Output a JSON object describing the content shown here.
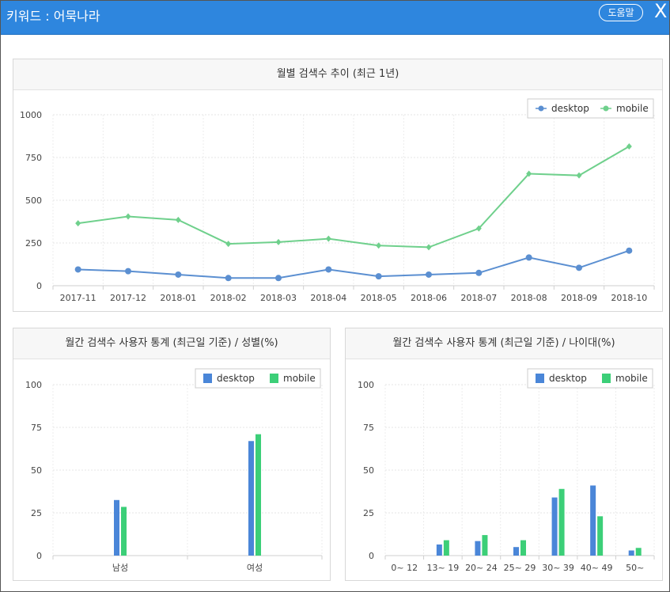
{
  "window": {
    "title": "키워드 : 어묵나라",
    "help_label": "도움말",
    "close_label": "X"
  },
  "chart_data": [
    {
      "type": "line",
      "title": "월별 검색수 추이 (최근 1년)",
      "categories": [
        "2017-11",
        "2017-12",
        "2018-01",
        "2018-02",
        "2018-03",
        "2018-04",
        "2018-05",
        "2018-06",
        "2018-07",
        "2018-08",
        "2018-09",
        "2018-10"
      ],
      "series": [
        {
          "name": "desktop",
          "color": "#5b8fd1",
          "values": [
            95,
            85,
            65,
            45,
            45,
            95,
            55,
            65,
            75,
            165,
            105,
            205
          ]
        },
        {
          "name": "mobile",
          "color": "#6fd08c",
          "values": [
            365,
            405,
            385,
            245,
            255,
            275,
            235,
            225,
            335,
            655,
            645,
            815
          ]
        }
      ],
      "yticks": [
        0,
        250,
        500,
        750,
        1000
      ],
      "ylim": [
        0,
        1000
      ],
      "legend": "top-right"
    },
    {
      "type": "bar",
      "title": "월간 검색수 사용자 통계 (최근일 기준) / 성별(%)",
      "categories": [
        "남성",
        "여성"
      ],
      "series": [
        {
          "name": "desktop",
          "color": "#4a86d8",
          "values": [
            32.5,
            67
          ]
        },
        {
          "name": "mobile",
          "color": "#3ccf78",
          "values": [
            28.5,
            71
          ]
        }
      ],
      "yticks": [
        0,
        25,
        50,
        75,
        100
      ],
      "ylim": [
        0,
        100
      ],
      "legend": "top-right"
    },
    {
      "type": "bar",
      "title": "월간 검색수 사용자 통계 (최근일 기준) / 나이대(%)",
      "categories": [
        "0~ 12",
        "13~ 19",
        "20~ 24",
        "25~ 29",
        "30~ 39",
        "40~ 49",
        "50~"
      ],
      "series": [
        {
          "name": "desktop",
          "color": "#4a86d8",
          "values": [
            0,
            6.5,
            8.5,
            5,
            34,
            41,
            3
          ]
        },
        {
          "name": "mobile",
          "color": "#3ccf78",
          "values": [
            0,
            9,
            12,
            9,
            39,
            23,
            4.5
          ]
        }
      ],
      "yticks": [
        0,
        25,
        50,
        75,
        100
      ],
      "ylim": [
        0,
        100
      ],
      "legend": "top-right"
    }
  ]
}
